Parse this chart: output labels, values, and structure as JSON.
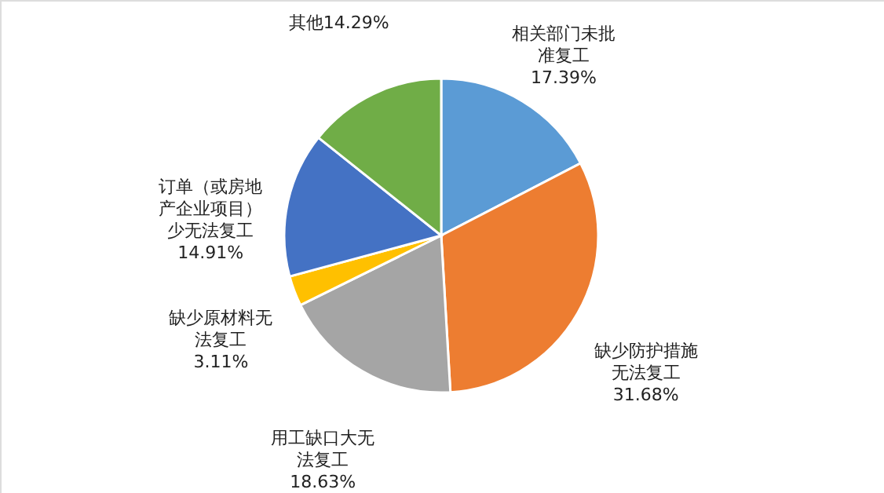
{
  "chart_data": {
    "type": "pie",
    "categories": [
      "相关部门未批准复工",
      "缺少防护措施无法复工",
      "用工缺口大无法复工",
      "缺少原材料无法复工",
      "订单（或房地产企业项目）少无法复工",
      "其他"
    ],
    "values": [
      17.39,
      31.68,
      18.63,
      3.11,
      14.91,
      14.29
    ],
    "value_labels": [
      "17.39%",
      "31.68%",
      "18.63%",
      "3.11%",
      "14.91%",
      "14.29%"
    ],
    "colors": [
      "#5b9bd5",
      "#ed7d31",
      "#a5a5a5",
      "#ffc000",
      "#4472c4",
      "#70ad47"
    ]
  }
}
